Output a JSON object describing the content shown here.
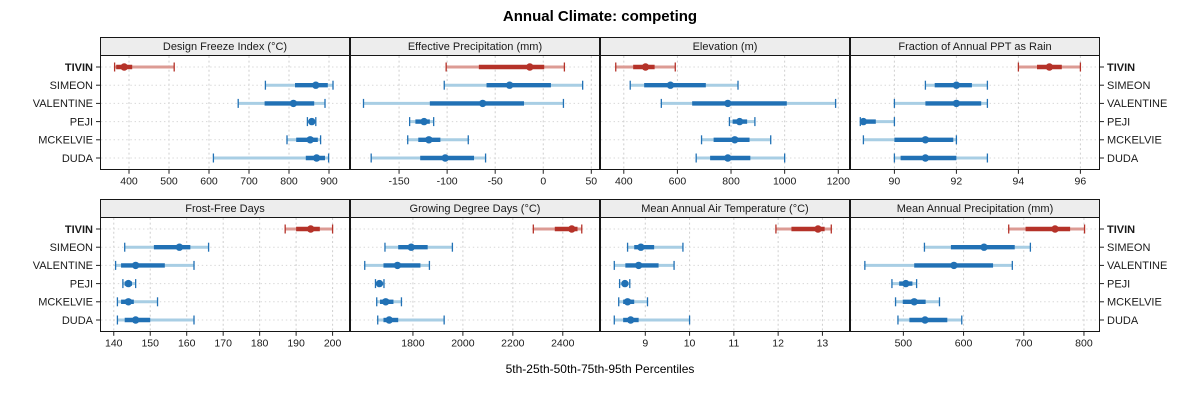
{
  "title": "Annual Climate: competing",
  "xlabel": "5th-25th-50th-75th-95th Percentiles",
  "sites": [
    "TIVIN",
    "SIMEON",
    "VALENTINE",
    "PEJI",
    "MCKELVIE",
    "DUDA"
  ],
  "highlight_site": "TIVIN",
  "colors": {
    "site_dark": "#2171b5",
    "site_light": "#a8cee4",
    "highlight_dark": "#b53229",
    "highlight_light": "#dc9b94",
    "grid_vertical": "#cfcfcf",
    "grid_horizontal": "#d8d8d8",
    "panel_border": "#161616",
    "strip_bg": "#ededed",
    "tick": "#222222",
    "text": "#1a1a1a"
  },
  "chart_data": {
    "type": "scatter",
    "subtype": "percentile-interval-dot-plot",
    "percentiles": [
      5,
      25,
      50,
      75,
      95
    ],
    "layout": {
      "rows": 2,
      "cols": 4,
      "legend": "none",
      "grid": "on"
    },
    "y_categories": [
      "TIVIN",
      "SIMEON",
      "VALENTINE",
      "PEJI",
      "MCKELVIE",
      "DUDA"
    ],
    "panels": [
      {
        "title": "Design Freeze Index (°C)",
        "ticks": [
          400,
          500,
          600,
          700,
          800,
          900
        ],
        "domain": [
          330,
          950
        ],
        "values": {
          "TIVIN": [
            364,
            368,
            388,
            408,
            513
          ],
          "SIMEON": [
            741,
            815,
            867,
            897,
            910
          ],
          "VALENTINE": [
            673,
            739,
            811,
            863,
            890
          ],
          "PEJI": [
            846,
            851,
            857,
            862,
            867
          ],
          "MCKELVIE": [
            795,
            818,
            853,
            872,
            879
          ],
          "DUDA": [
            611,
            842,
            869,
            890,
            899
          ]
        }
      },
      {
        "title": "Effective Precipitation (mm)",
        "ticks": [
          -150,
          -100,
          -50,
          0,
          50
        ],
        "domain": [
          -200,
          58
        ],
        "values": {
          "TIVIN": [
            -101,
            -67,
            -14,
            1,
            22
          ],
          "SIMEON": [
            -103,
            -59,
            -35,
            8,
            41
          ],
          "VALENTINE": [
            -187,
            -118,
            -63,
            -20,
            21
          ],
          "PEJI": [
            -139,
            -133,
            -124,
            -118,
            -114
          ],
          "MCKELVIE": [
            -141,
            -130,
            -119,
            -107,
            -78
          ],
          "DUDA": [
            -179,
            -128,
            -102,
            -72,
            -60
          ]
        }
      },
      {
        "title": "Elevation (m)",
        "ticks": [
          400,
          600,
          800,
          1000,
          1200
        ],
        "domain": [
          315,
          1240
        ],
        "values": {
          "TIVIN": [
            370,
            435,
            481,
            515,
            592
          ],
          "SIMEON": [
            424,
            476,
            574,
            706,
            826
          ],
          "VALENTINE": [
            540,
            655,
            788,
            1008,
            1190
          ],
          "PEJI": [
            794,
            806,
            832,
            860,
            889
          ],
          "MCKELVIE": [
            690,
            735,
            814,
            869,
            948
          ],
          "DUDA": [
            670,
            722,
            788,
            872,
            1000
          ]
        }
      },
      {
        "title": "Fraction of Annual PPT as Rain",
        "ticks": [
          90,
          92,
          94,
          96
        ],
        "domain": [
          88.6,
          96.6
        ],
        "values": {
          "TIVIN": [
            94,
            94.6,
            95,
            95.4,
            96
          ],
          "SIMEON": [
            91,
            91.3,
            92,
            92.5,
            93
          ],
          "VALENTINE": [
            90,
            91,
            92,
            92.8,
            93
          ],
          "PEJI": [
            88.9,
            89,
            89,
            89.4,
            90
          ],
          "MCKELVIE": [
            89,
            90,
            91,
            91.9,
            92
          ],
          "DUDA": [
            90,
            90.2,
            91,
            92,
            93
          ]
        }
      },
      {
        "title": "Frost-Free Days",
        "ticks": [
          140,
          150,
          160,
          170,
          180,
          190,
          200
        ],
        "domain": [
          136.5,
          204.5
        ],
        "values": {
          "TIVIN": [
            187,
            190,
            194,
            196.5,
            200
          ],
          "SIMEON": [
            143,
            151,
            158,
            161,
            166
          ],
          "VALENTINE": [
            140.5,
            142,
            146,
            154,
            162
          ],
          "PEJI": [
            142.5,
            143,
            144,
            145,
            146
          ],
          "MCKELVIE": [
            141,
            142,
            144,
            145.5,
            152
          ],
          "DUDA": [
            141,
            143,
            146,
            150,
            162
          ]
        }
      },
      {
        "title": "Growing Degree Days (°C)",
        "ticks": [
          1800,
          2000,
          2200,
          2400
        ],
        "domain": [
          1552,
          2545
        ],
        "values": {
          "TIVIN": [
            2282,
            2368,
            2436,
            2459,
            2476
          ],
          "SIMEON": [
            1688,
            1741,
            1793,
            1859,
            1958
          ],
          "VALENTINE": [
            1607,
            1682,
            1738,
            1830,
            1866
          ],
          "PEJI": [
            1650,
            1658,
            1666,
            1675,
            1684
          ],
          "MCKELVIE": [
            1655,
            1668,
            1691,
            1722,
            1754
          ],
          "DUDA": [
            1659,
            1682,
            1705,
            1741,
            1925
          ]
        }
      },
      {
        "title": "Mean Annual Air Temperature (°C)",
        "ticks": [
          9,
          10,
          11,
          12,
          13
        ],
        "domain": [
          8.0,
          13.6
        ],
        "values": {
          "TIVIN": [
            11.95,
            12.3,
            12.9,
            13.05,
            13.2
          ],
          "SIMEON": [
            8.6,
            8.75,
            8.9,
            9.2,
            9.85
          ],
          "VALENTINE": [
            8.3,
            8.55,
            8.85,
            9.3,
            9.65
          ],
          "PEJI": [
            8.42,
            8.47,
            8.54,
            8.6,
            8.65
          ],
          "MCKELVIE": [
            8.4,
            8.5,
            8.6,
            8.75,
            9.05
          ],
          "DUDA": [
            8.3,
            8.5,
            8.67,
            8.85,
            10.0
          ]
        }
      },
      {
        "title": "Mean Annual Precipitation (mm)",
        "ticks": [
          500,
          600,
          700,
          800
        ],
        "domain": [
          413,
          825
        ],
        "values": {
          "TIVIN": [
            675,
            703,
            752,
            777,
            801
          ],
          "SIMEON": [
            535,
            579,
            634,
            685,
            711
          ],
          "VALENTINE": [
            436,
            518,
            584,
            649,
            681
          ],
          "PEJI": [
            481,
            493,
            504,
            515,
            522
          ],
          "MCKELVIE": [
            487,
            499,
            518,
            537,
            560
          ],
          "DUDA": [
            491,
            510,
            536,
            573,
            597
          ]
        }
      }
    ]
  }
}
